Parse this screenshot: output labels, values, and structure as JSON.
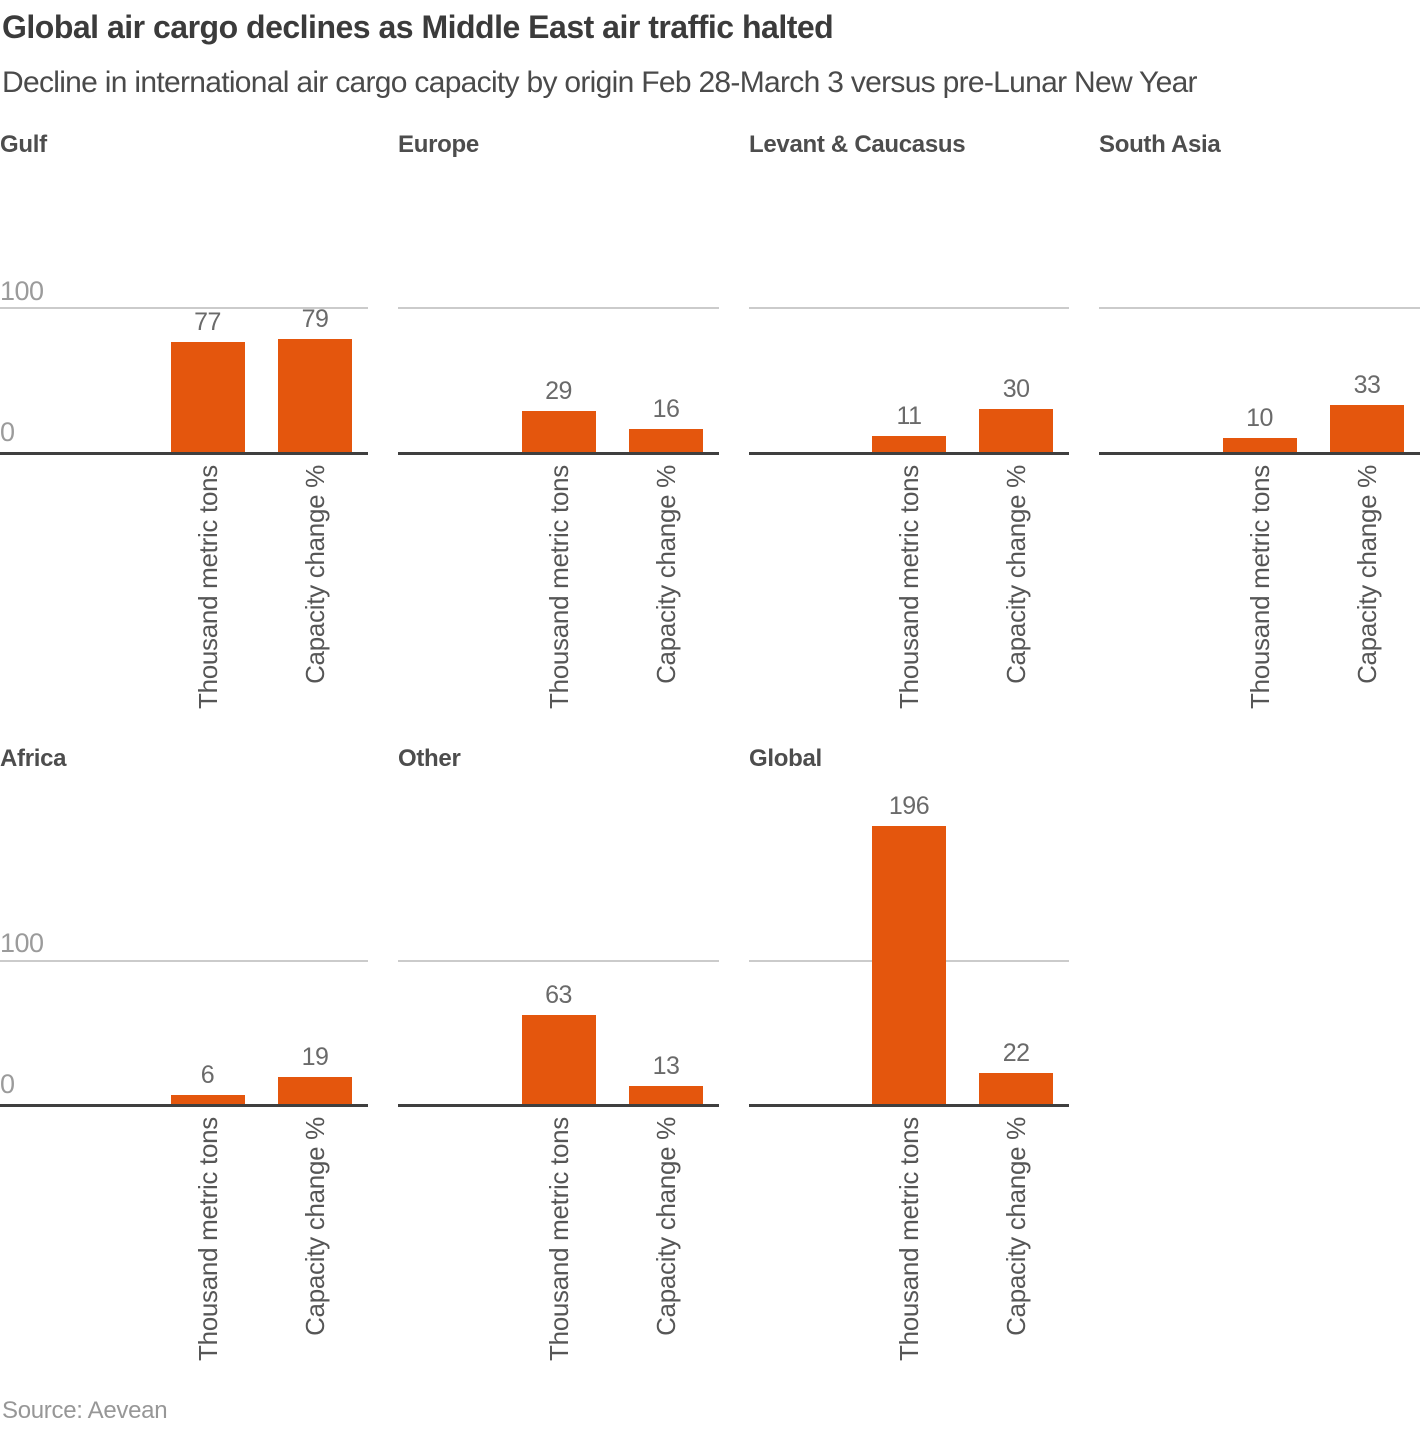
{
  "header": {
    "title": "Global air cargo declines as Middle East air traffic halted",
    "subtitle": "Decline in international air cargo capacity by origin Feb 28-March 3 versus pre-Lunar New Year"
  },
  "source": "Source: Aevean",
  "chart_data": {
    "type": "bar",
    "layout": "small-multiples-grid",
    "title": "Global air cargo declines as Middle East air traffic halted",
    "subtitle": "Decline in international air cargo capacity by origin Feb 28-March 3 versus pre-Lunar New Year",
    "categories": [
      "Thousand metric tons",
      "Capacity change %"
    ],
    "y_axis": {
      "tick_labels": [
        "0",
        "100"
      ],
      "ticks": [
        0,
        100
      ],
      "ylim_top_row": [
        0,
        200
      ],
      "ylim_bottom_row": [
        0,
        230
      ],
      "gridline_at": 100,
      "grid": "single-line-at-100"
    },
    "bar_color": "#e4560d",
    "panels": [
      {
        "title": "Gulf",
        "values": [
          77,
          79
        ]
      },
      {
        "title": "Europe",
        "values": [
          29,
          16
        ]
      },
      {
        "title": "Levant & Caucasus",
        "values": [
          11,
          30
        ]
      },
      {
        "title": "South Asia",
        "values": [
          10,
          33
        ]
      },
      {
        "title": "Africa",
        "values": [
          6,
          19
        ]
      },
      {
        "title": "Other",
        "values": [
          63,
          13
        ]
      },
      {
        "title": "Global",
        "values": [
          196,
          22
        ]
      }
    ]
  }
}
